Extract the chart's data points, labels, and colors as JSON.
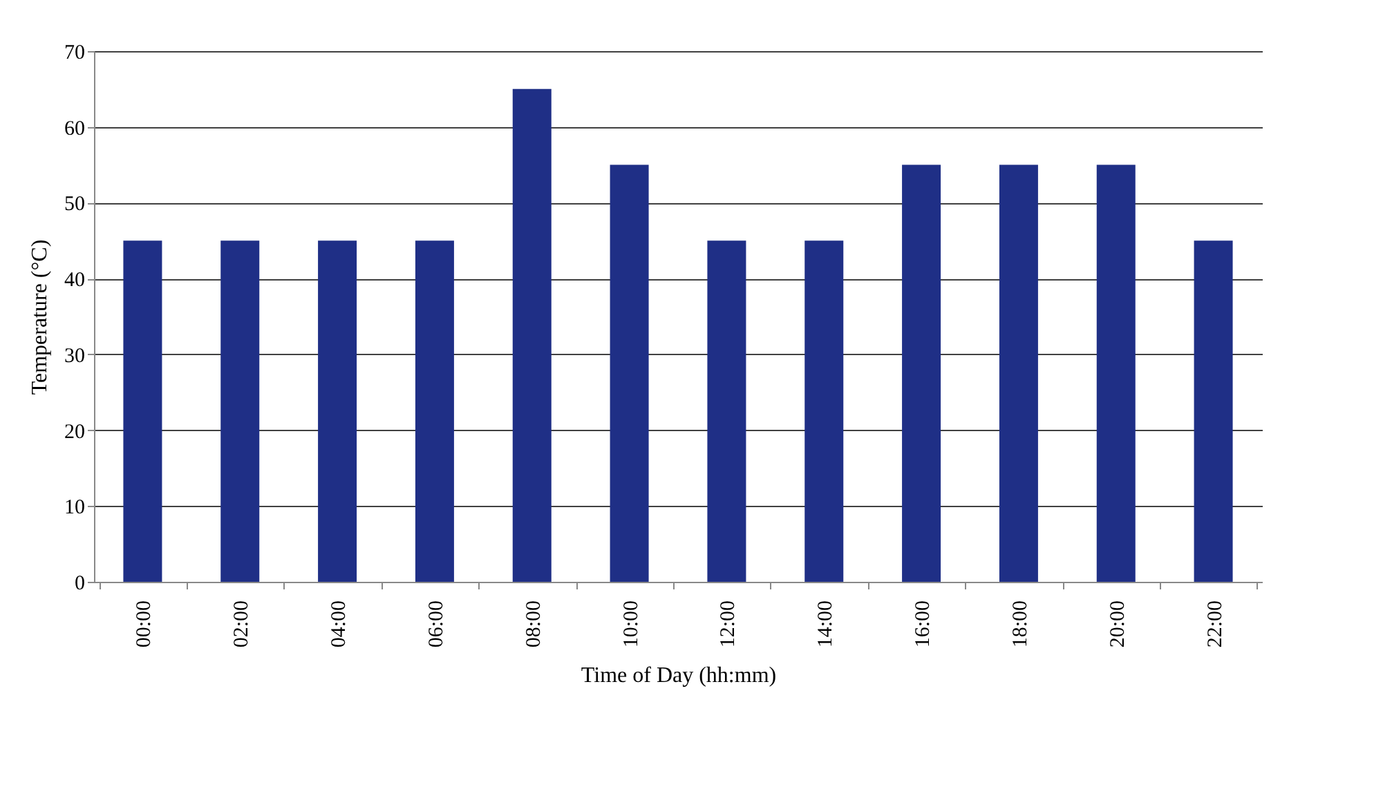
{
  "chart_data": {
    "type": "bar",
    "xlabel": "Time of Day (hh:mm)",
    "ylabel": "Temperature (°C)",
    "categories": [
      "00:00",
      "02:00",
      "04:00",
      "06:00",
      "08:00",
      "10:00",
      "12:00",
      "14:00",
      "16:00",
      "18:00",
      "20:00",
      "22:00"
    ],
    "values": [
      45,
      45,
      45,
      45,
      65,
      55,
      45,
      45,
      55,
      55,
      55,
      45
    ],
    "color": "#1f2f86",
    "ylim": [
      0,
      70
    ],
    "yticks": [
      0,
      10,
      20,
      30,
      40,
      50,
      60,
      70
    ],
    "grid": "y"
  }
}
